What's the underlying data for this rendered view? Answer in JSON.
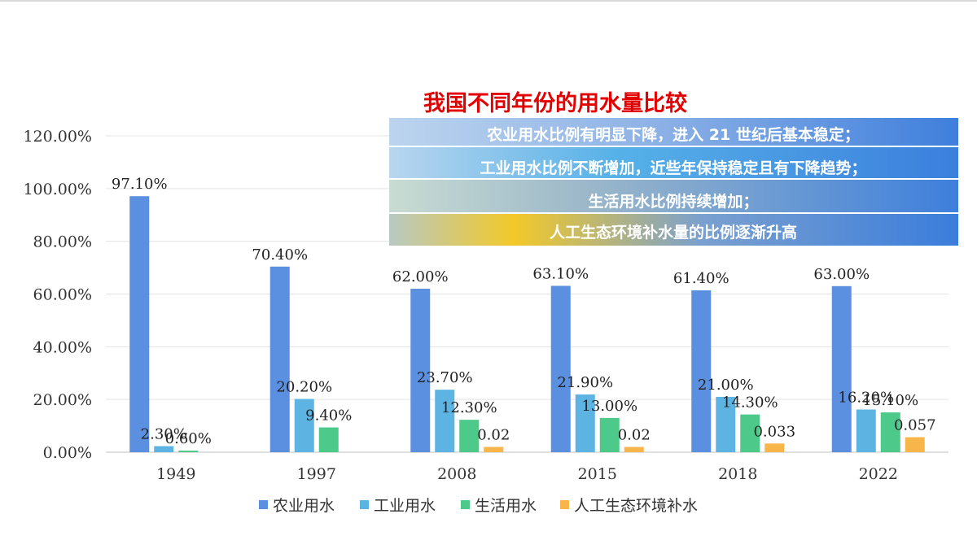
{
  "chart_data": {
    "type": "bar",
    "title": "我国不同年份的用水量比较",
    "categories": [
      "1949",
      "1997",
      "2008",
      "2015",
      "2018",
      "2022"
    ],
    "series": [
      {
        "name": "农业用水",
        "color": "#5b8fe0",
        "values": [
          0.971,
          0.704,
          0.62,
          0.631,
          0.614,
          0.63
        ],
        "labels": [
          "97.10%",
          "70.40%",
          "62.00%",
          "63.10%",
          "61.40%",
          "63.00%"
        ]
      },
      {
        "name": "工业用水",
        "color": "#5db4e3",
        "values": [
          0.023,
          0.202,
          0.237,
          0.219,
          0.21,
          0.162
        ],
        "labels": [
          "2.30%",
          "20.20%",
          "23.70%",
          "21.90%",
          "21.00%",
          "16.20%"
        ]
      },
      {
        "name": "生活用水",
        "color": "#4dc98a",
        "values": [
          0.006,
          0.094,
          0.123,
          0.13,
          0.143,
          0.151
        ],
        "labels": [
          "0.60%",
          "9.40%",
          "12.30%",
          "13.00%",
          "14.30%",
          "15.10%"
        ]
      },
      {
        "name": "人工生态环境补水",
        "color": "#f7b54a",
        "values": [
          null,
          null,
          0.02,
          0.02,
          0.033,
          0.057
        ],
        "labels": [
          null,
          null,
          "0.02",
          "0.02",
          "0.033",
          "0.057"
        ]
      }
    ],
    "y_ticks": [
      "0.00%",
      "20.00%",
      "40.00%",
      "60.00%",
      "80.00%",
      "100.00%",
      "120.00%"
    ],
    "ylim": [
      0,
      1.2
    ],
    "grid": true,
    "legend_position": "bottom"
  },
  "annotation_box": {
    "lines": [
      "农业用水比例有明显下降，进入 21 世纪后基本稳定；",
      "工业用水比例不断增加，近些年保持稳定且有下降趋势；",
      "生活用水比例持续增加；",
      "人工生态环境补水量的比例逐渐升高"
    ]
  }
}
